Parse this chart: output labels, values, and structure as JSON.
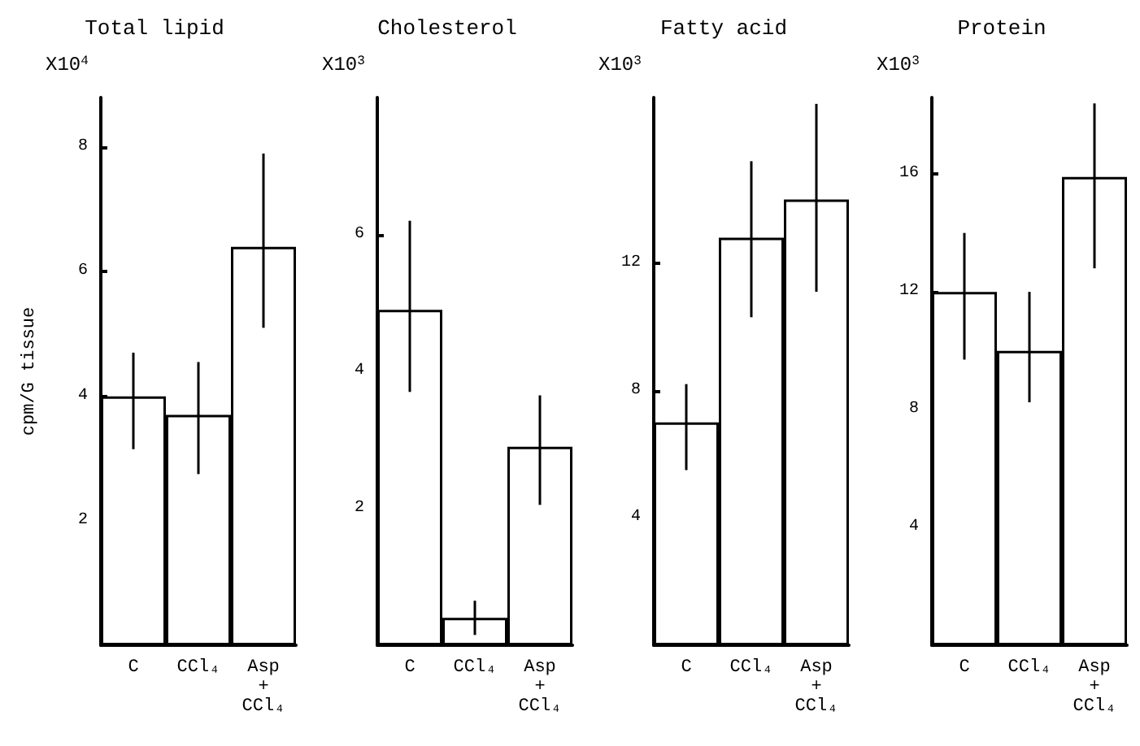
{
  "chart_data": [
    {
      "type": "bar",
      "title": "Total lipid",
      "ylabel": "cpm/G tissue",
      "annotations": [
        "X10$^{4}$"
      ],
      "categories": [
        "C",
        "CCl₄",
        "Asp + CCl₄"
      ],
      "series": [
        {
          "color": "#ffffff",
          "values": [
            4.0,
            3.7,
            6.4
          ],
          "errors": [
            [
              3.15,
              4.7
            ],
            [
              2.75,
              4.55
            ],
            [
              5.1,
              7.9
            ]
          ]
        }
      ],
      "ylim": [
        0,
        8.8
      ],
      "yticks": [
        2,
        4,
        6,
        8
      ],
      "grid": false
    },
    {
      "type": "bar",
      "title": "Cholesterol",
      "annotations": [
        "X10$^{3}$"
      ],
      "categories": [
        "C",
        "CCl₄",
        "Asp + CCl₄"
      ],
      "series": [
        {
          "color": "#ffffff",
          "values": [
            4.9,
            0.4,
            2.9
          ],
          "errors": [
            [
              3.7,
              6.2
            ],
            [
              0.15,
              0.65
            ],
            [
              2.05,
              3.65
            ]
          ]
        }
      ],
      "ylim": [
        0,
        8
      ],
      "yticks": [
        2,
        4,
        6
      ],
      "grid": false
    },
    {
      "type": "bar",
      "title": "Fatty acid",
      "annotations": [
        "X10$^{3}$"
      ],
      "categories": [
        "C",
        "CCl₄",
        "Asp + CCl₄"
      ],
      "series": [
        {
          "color": "#ffffff",
          "values": [
            7.0,
            12.8,
            14.0
          ],
          "errors": [
            [
              5.5,
              8.2
            ],
            [
              10.3,
              15.2
            ],
            [
              11.1,
              17.0
            ]
          ]
        }
      ],
      "ylim": [
        0,
        17.2
      ],
      "yticks": [
        4,
        8,
        12
      ],
      "grid": false
    },
    {
      "type": "bar",
      "title": "Protein",
      "annotations": [
        "X10$^{3}$"
      ],
      "categories": [
        "C",
        "CCl₄",
        "Asp + CCl₄"
      ],
      "series": [
        {
          "color": "#ffffff",
          "values": [
            12.0,
            10.0,
            15.9
          ],
          "errors": [
            [
              9.7,
              14.0
            ],
            [
              8.25,
              12.0
            ],
            [
              12.8,
              18.4
            ]
          ]
        }
      ],
      "ylim": [
        0,
        18.6
      ],
      "yticks": [
        4,
        8,
        12,
        16
      ],
      "grid": false
    }
  ]
}
